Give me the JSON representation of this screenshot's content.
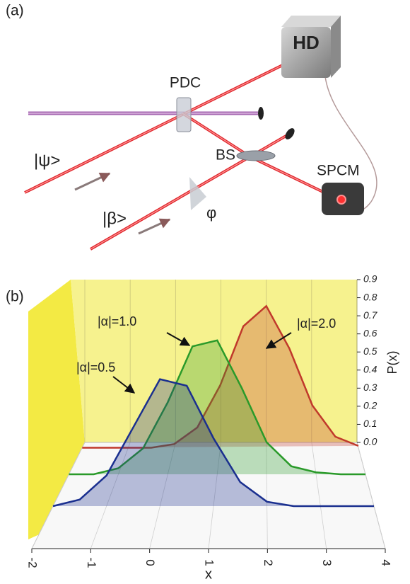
{
  "panel_a": {
    "label": "(a)",
    "hd": "HD",
    "pdc": "PDC",
    "psi": "|ψ>",
    "bs": "BS",
    "spcm": "SPCM",
    "beta": "|β>",
    "phi": "φ"
  },
  "panel_b": {
    "label": "(b)"
  },
  "chart_data": {
    "type": "line",
    "xlabel": "x",
    "ylabel": "P(x)",
    "x": [
      -2,
      -1.5,
      -1,
      -0.5,
      0,
      0.5,
      1,
      1.5,
      2,
      2.5,
      3,
      3.5,
      4
    ],
    "series": [
      {
        "name": "|α|=0.5",
        "color": "#1a2f8f",
        "values": [
          0.0,
          0.03,
          0.14,
          0.36,
          0.58,
          0.55,
          0.31,
          0.11,
          0.02,
          0.0,
          0.0,
          0.0,
          0.0
        ]
      },
      {
        "name": "|α|=1.0",
        "color": "#2a9a2a",
        "values": [
          0.0,
          0.0,
          0.03,
          0.13,
          0.36,
          0.64,
          0.67,
          0.43,
          0.16,
          0.04,
          0.01,
          0.0,
          0.0
        ]
      },
      {
        "name": "|α|=2.0",
        "color": "#c0392b",
        "values": [
          0.0,
          0.0,
          0.0,
          0.0,
          0.02,
          0.11,
          0.34,
          0.66,
          0.77,
          0.54,
          0.23,
          0.06,
          0.01
        ]
      }
    ],
    "xlim": [
      -2,
      4
    ],
    "ylim": [
      0,
      0.9
    ],
    "xticks": [
      -2,
      -1,
      0,
      1,
      2,
      3,
      4
    ],
    "yticks": [
      {
        "value": 0,
        "label": "0.0"
      },
      0.1,
      0.2,
      0.3,
      0.4,
      0.5,
      0.6,
      0.7,
      0.8,
      0.9
    ]
  }
}
